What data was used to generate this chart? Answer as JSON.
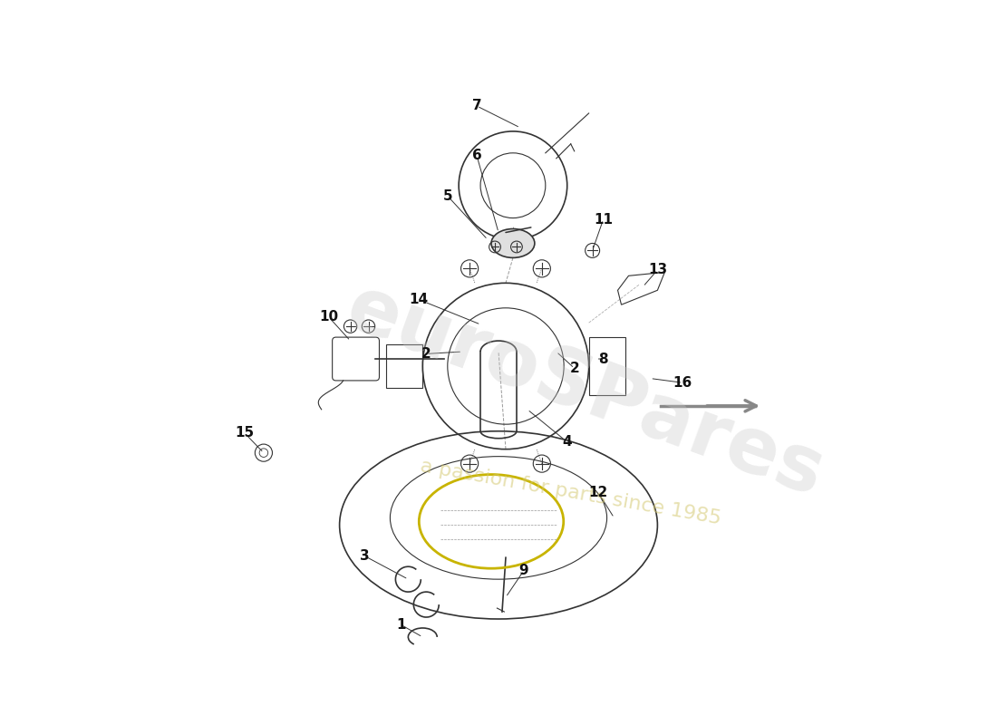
{
  "background_color": "#ffffff",
  "watermark_text1": "euroSPares",
  "watermark_text2": "a passion for parts since 1985",
  "line_color": "#333333",
  "label_color": "#111111",
  "font_size": 11,
  "watermark_color1": "#c8c8c8",
  "watermark_color2": "#d4c870",
  "watermark_alpha": 0.35,
  "gasket_color": "#c8b400",
  "arrow_color": "#888888"
}
